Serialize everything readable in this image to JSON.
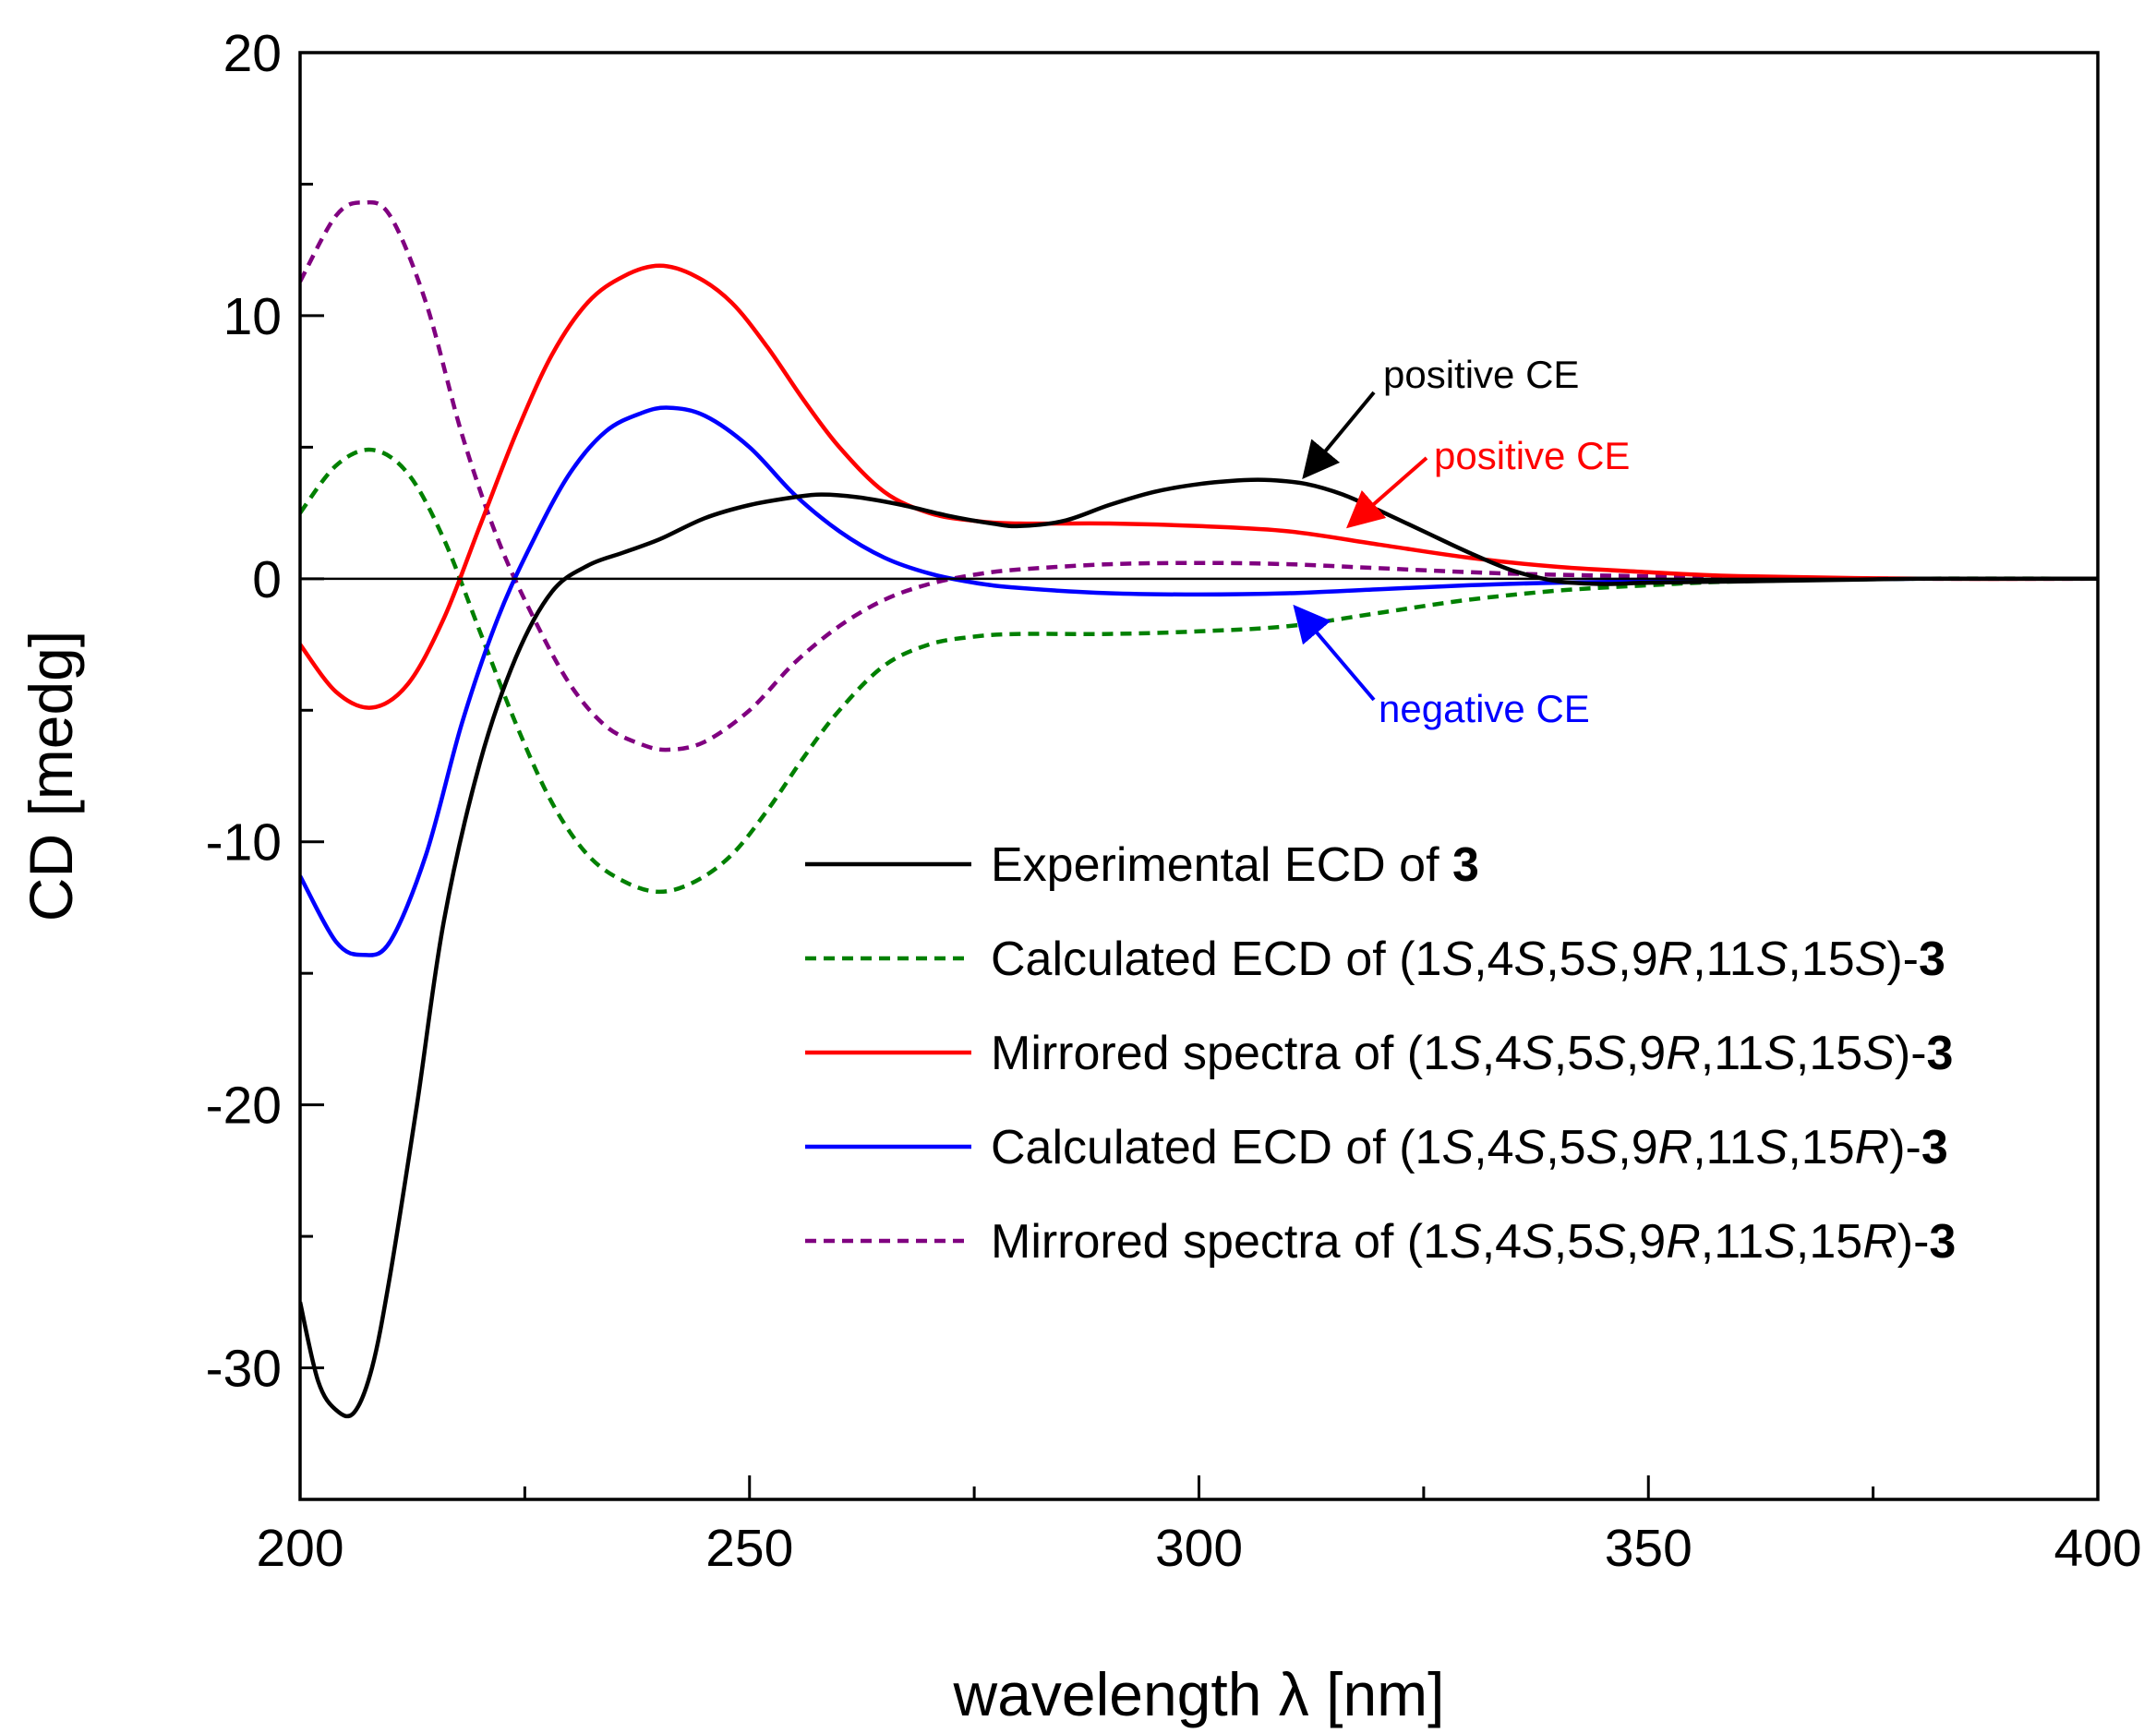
{
  "chart_data": {
    "type": "line",
    "xlabel": "wavelength λ [nm]",
    "ylabel": "CD [medg]",
    "xlim": [
      200,
      400
    ],
    "ylim": [
      -35,
      20
    ],
    "x_ticks": [
      200,
      250,
      300,
      350,
      400
    ],
    "x_tick_labels": [
      "200",
      "250",
      "300",
      "350",
      "400"
    ],
    "y_ticks": [
      20,
      10,
      0,
      -10,
      -20,
      -30
    ],
    "y_tick_labels": [
      "20",
      "10",
      "0",
      "-10",
      "-20",
      "-30"
    ],
    "zero_line": true,
    "grid": false,
    "legend_position": "lower-right",
    "series": [
      {
        "name": "Experimental ECD of 3",
        "legend_parts": [
          {
            "text": "Experimental ECD of ",
            "style": "normal"
          },
          {
            "text": "3",
            "style": "bold"
          }
        ],
        "color": "#000000",
        "dash": "solid",
        "points": [
          [
            200,
            -27.5
          ],
          [
            202,
            -30.5
          ],
          [
            204,
            -31.6
          ],
          [
            206,
            -31.7
          ],
          [
            208,
            -30.0
          ],
          [
            210,
            -26.5
          ],
          [
            213,
            -20.0
          ],
          [
            216,
            -13.0
          ],
          [
            220,
            -7.0
          ],
          [
            224,
            -3.0
          ],
          [
            228,
            -0.5
          ],
          [
            232,
            0.5
          ],
          [
            236,
            1.0
          ],
          [
            240,
            1.5
          ],
          [
            245,
            2.3
          ],
          [
            250,
            2.8
          ],
          [
            255,
            3.1
          ],
          [
            258,
            3.2
          ],
          [
            262,
            3.1
          ],
          [
            267,
            2.8
          ],
          [
            272,
            2.4
          ],
          [
            277,
            2.1
          ],
          [
            280,
            2.0
          ],
          [
            285,
            2.2
          ],
          [
            290,
            2.8
          ],
          [
            295,
            3.3
          ],
          [
            300,
            3.6
          ],
          [
            305,
            3.75
          ],
          [
            308,
            3.75
          ],
          [
            312,
            3.6
          ],
          [
            316,
            3.2
          ],
          [
            320,
            2.6
          ],
          [
            325,
            1.8
          ],
          [
            330,
            1.0
          ],
          [
            335,
            0.3
          ],
          [
            340,
            -0.1
          ],
          [
            345,
            -0.2
          ],
          [
            350,
            -0.15
          ],
          [
            360,
            -0.1
          ],
          [
            370,
            -0.05
          ],
          [
            380,
            0.0
          ],
          [
            390,
            0.0
          ],
          [
            400,
            0.0
          ]
        ]
      },
      {
        "name": "Calculated ECD of (1S,4S,5S,9R,11S,15S)-3",
        "legend_parts": [
          {
            "text": "Calculated ECD of (1",
            "style": "normal"
          },
          {
            "text": "S",
            "style": "italic"
          },
          {
            "text": ",4",
            "style": "normal"
          },
          {
            "text": "S",
            "style": "italic"
          },
          {
            "text": ",5",
            "style": "normal"
          },
          {
            "text": "S",
            "style": "italic"
          },
          {
            "text": ",9",
            "style": "normal"
          },
          {
            "text": "R",
            "style": "italic"
          },
          {
            "text": ",11",
            "style": "normal"
          },
          {
            "text": "S",
            "style": "italic"
          },
          {
            "text": ",15",
            "style": "normal"
          },
          {
            "text": "S",
            "style": "italic"
          },
          {
            "text": ")-",
            "style": "normal"
          },
          {
            "text": "3",
            "style": "bold"
          }
        ],
        "color": "#008000",
        "dash": "dashed",
        "points": [
          [
            200,
            2.5
          ],
          [
            204,
            4.3
          ],
          [
            208,
            4.9
          ],
          [
            212,
            4.0
          ],
          [
            216,
            1.5
          ],
          [
            220,
            -2.0
          ],
          [
            224,
            -5.5
          ],
          [
            228,
            -8.5
          ],
          [
            232,
            -10.5
          ],
          [
            236,
            -11.5
          ],
          [
            240,
            -11.9
          ],
          [
            244,
            -11.5
          ],
          [
            248,
            -10.5
          ],
          [
            252,
            -8.8
          ],
          [
            256,
            -6.8
          ],
          [
            260,
            -5.0
          ],
          [
            265,
            -3.3
          ],
          [
            270,
            -2.5
          ],
          [
            275,
            -2.2
          ],
          [
            280,
            -2.1
          ],
          [
            290,
            -2.1
          ],
          [
            300,
            -2.0
          ],
          [
            310,
            -1.8
          ],
          [
            320,
            -1.3
          ],
          [
            330,
            -0.8
          ],
          [
            340,
            -0.45
          ],
          [
            350,
            -0.25
          ],
          [
            360,
            -0.1
          ],
          [
            380,
            0.0
          ],
          [
            400,
            0.0
          ]
        ]
      },
      {
        "name": "Mirrored spectra of (1S,4S,5S,9R,11S,15S)-3",
        "legend_parts": [
          {
            "text": "Mirrored spectra of (1",
            "style": "normal"
          },
          {
            "text": "S",
            "style": "italic"
          },
          {
            "text": ",4",
            "style": "normal"
          },
          {
            "text": "S",
            "style": "italic"
          },
          {
            "text": ",5",
            "style": "normal"
          },
          {
            "text": "S",
            "style": "italic"
          },
          {
            "text": ",9",
            "style": "normal"
          },
          {
            "text": "R",
            "style": "italic"
          },
          {
            "text": ",11",
            "style": "normal"
          },
          {
            "text": "S",
            "style": "italic"
          },
          {
            "text": ",15",
            "style": "normal"
          },
          {
            "text": "S",
            "style": "italic"
          },
          {
            "text": ")-",
            "style": "normal"
          },
          {
            "text": "3",
            "style": "bold"
          }
        ],
        "color": "#ff0000",
        "dash": "solid",
        "points": [
          [
            200,
            -2.5
          ],
          [
            204,
            -4.3
          ],
          [
            208,
            -4.9
          ],
          [
            212,
            -4.0
          ],
          [
            216,
            -1.5
          ],
          [
            220,
            2.0
          ],
          [
            224,
            5.5
          ],
          [
            228,
            8.5
          ],
          [
            232,
            10.5
          ],
          [
            236,
            11.5
          ],
          [
            240,
            11.9
          ],
          [
            244,
            11.5
          ],
          [
            248,
            10.5
          ],
          [
            252,
            8.8
          ],
          [
            256,
            6.8
          ],
          [
            260,
            5.0
          ],
          [
            265,
            3.3
          ],
          [
            270,
            2.5
          ],
          [
            275,
            2.2
          ],
          [
            280,
            2.1
          ],
          [
            290,
            2.1
          ],
          [
            300,
            2.0
          ],
          [
            310,
            1.8
          ],
          [
            320,
            1.3
          ],
          [
            330,
            0.8
          ],
          [
            340,
            0.45
          ],
          [
            350,
            0.25
          ],
          [
            360,
            0.1
          ],
          [
            380,
            0.0
          ],
          [
            400,
            0.0
          ]
        ]
      },
      {
        "name": "Calculated ECD of (1S,4S,5S,9R,11S,15R)-3",
        "legend_parts": [
          {
            "text": "Calculated ECD of (1",
            "style": "normal"
          },
          {
            "text": "S",
            "style": "italic"
          },
          {
            "text": ",4",
            "style": "normal"
          },
          {
            "text": "S",
            "style": "italic"
          },
          {
            "text": ",5",
            "style": "normal"
          },
          {
            "text": "S",
            "style": "italic"
          },
          {
            "text": ",9",
            "style": "normal"
          },
          {
            "text": "R",
            "style": "italic"
          },
          {
            "text": ",11",
            "style": "normal"
          },
          {
            "text": "S",
            "style": "italic"
          },
          {
            "text": ",15",
            "style": "normal"
          },
          {
            "text": "R",
            "style": "italic"
          },
          {
            "text": ")-",
            "style": "normal"
          },
          {
            "text": "3",
            "style": "bold"
          }
        ],
        "color": "#0000ff",
        "dash": "solid",
        "points": [
          [
            200,
            -11.3
          ],
          [
            204,
            -13.8
          ],
          [
            207,
            -14.3
          ],
          [
            210,
            -13.8
          ],
          [
            214,
            -10.5
          ],
          [
            218,
            -5.5
          ],
          [
            222,
            -1.5
          ],
          [
            226,
            1.5
          ],
          [
            230,
            4.0
          ],
          [
            234,
            5.6
          ],
          [
            238,
            6.3
          ],
          [
            241,
            6.5
          ],
          [
            245,
            6.2
          ],
          [
            250,
            5.0
          ],
          [
            255,
            3.2
          ],
          [
            260,
            1.8
          ],
          [
            265,
            0.8
          ],
          [
            270,
            0.2
          ],
          [
            275,
            -0.15
          ],
          [
            280,
            -0.35
          ],
          [
            290,
            -0.55
          ],
          [
            300,
            -0.6
          ],
          [
            310,
            -0.55
          ],
          [
            320,
            -0.4
          ],
          [
            330,
            -0.25
          ],
          [
            340,
            -0.15
          ],
          [
            360,
            -0.05
          ],
          [
            380,
            0.0
          ],
          [
            400,
            0.0
          ]
        ]
      },
      {
        "name": "Mirrored spectra of (1S,4S,5S,9R,11S,15R)-3",
        "legend_parts": [
          {
            "text": "Mirrored spectra of (1",
            "style": "normal"
          },
          {
            "text": "S",
            "style": "italic"
          },
          {
            "text": ",4",
            "style": "normal"
          },
          {
            "text": "S",
            "style": "italic"
          },
          {
            "text": ",5",
            "style": "normal"
          },
          {
            "text": "S",
            "style": "italic"
          },
          {
            "text": ",9",
            "style": "normal"
          },
          {
            "text": "R",
            "style": "italic"
          },
          {
            "text": ",11",
            "style": "normal"
          },
          {
            "text": "S",
            "style": "italic"
          },
          {
            "text": ",15",
            "style": "normal"
          },
          {
            "text": "R",
            "style": "italic"
          },
          {
            "text": ")-",
            "style": "normal"
          },
          {
            "text": "3",
            "style": "bold"
          }
        ],
        "color": "#800080",
        "dash": "dashed",
        "points": [
          [
            200,
            11.3
          ],
          [
            204,
            13.8
          ],
          [
            207,
            14.3
          ],
          [
            210,
            13.8
          ],
          [
            214,
            10.5
          ],
          [
            218,
            5.5
          ],
          [
            222,
            1.5
          ],
          [
            226,
            -1.5
          ],
          [
            230,
            -4.0
          ],
          [
            234,
            -5.6
          ],
          [
            238,
            -6.3
          ],
          [
            241,
            -6.5
          ],
          [
            245,
            -6.2
          ],
          [
            250,
            -5.0
          ],
          [
            255,
            -3.2
          ],
          [
            260,
            -1.8
          ],
          [
            265,
            -0.8
          ],
          [
            270,
            -0.2
          ],
          [
            275,
            0.15
          ],
          [
            280,
            0.35
          ],
          [
            290,
            0.55
          ],
          [
            300,
            0.6
          ],
          [
            310,
            0.55
          ],
          [
            320,
            0.4
          ],
          [
            330,
            0.25
          ],
          [
            340,
            0.15
          ],
          [
            360,
            0.05
          ],
          [
            380,
            0.0
          ],
          [
            400,
            0.0
          ]
        ]
      }
    ],
    "annotations": [
      {
        "text": "positive CE",
        "color": "#000000",
        "arrow_to": [
          312,
          4.0
        ]
      },
      {
        "text": "positive CE",
        "color": "#ff0000",
        "arrow_to": [
          317,
          2.1
        ]
      },
      {
        "text": "negative CE",
        "color": "#0000ff",
        "arrow_to": [
          311,
          -1.2
        ]
      }
    ]
  }
}
